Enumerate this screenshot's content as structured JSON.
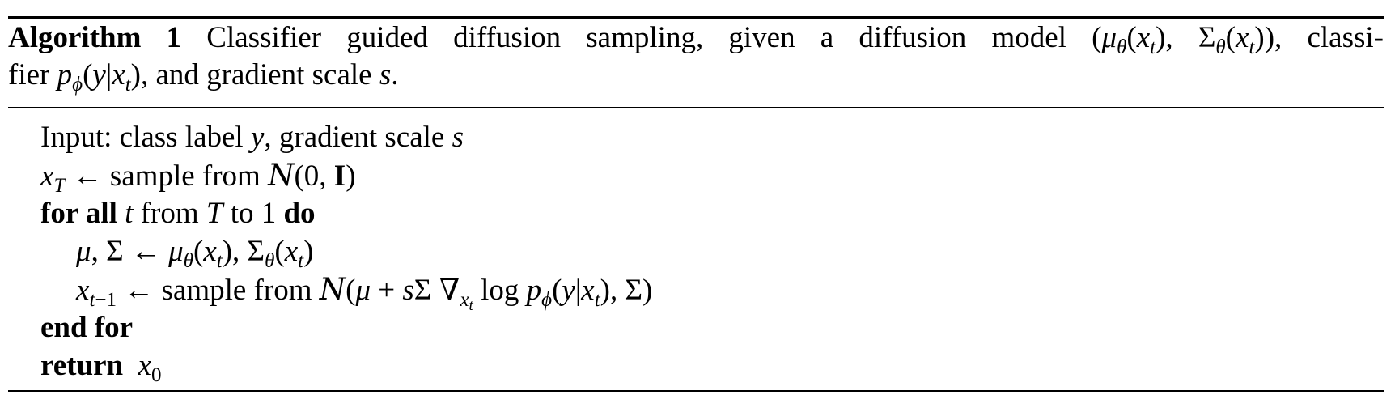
{
  "algorithm": {
    "label": "Algorithm 1",
    "caption_line1_text": "Classifier guided diffusion sampling, given a diffusion model",
    "caption_line1_math": "(μθ(xt), Σθ(xt)), classi-",
    "caption_line2_text_a": "fier",
    "caption_line2_math": "pϕ(y|xt)",
    "caption_line2_text_b": ", and gradient scale",
    "caption_line2_var": "s."
  },
  "steps": [
    {
      "text": "Input: class label y, gradient scale s"
    },
    {
      "text": "xT ← sample from N(0, I)"
    },
    {
      "keyword_for": "for all",
      "text": "t from T to 1",
      "keyword_do": "do"
    },
    {
      "text": "μ, Σ ← μθ(xt), Σθ(xt)"
    },
    {
      "text": "xt−1 ← sample from N(μ + sΣ ∇xt log pϕ(y|xt), Σ)"
    },
    {
      "keyword": "end for"
    },
    {
      "keyword": "return",
      "text": "x0"
    }
  ],
  "labels": {
    "input_prefix": "Input: class label",
    "input_mid": ", gradient scale",
    "sample_from": "sample from",
    "from_word": "from",
    "to_word": "to 1",
    "end_for": "end for",
    "return": "return",
    "for_all": "for all",
    "do": "do",
    "log": "log"
  }
}
